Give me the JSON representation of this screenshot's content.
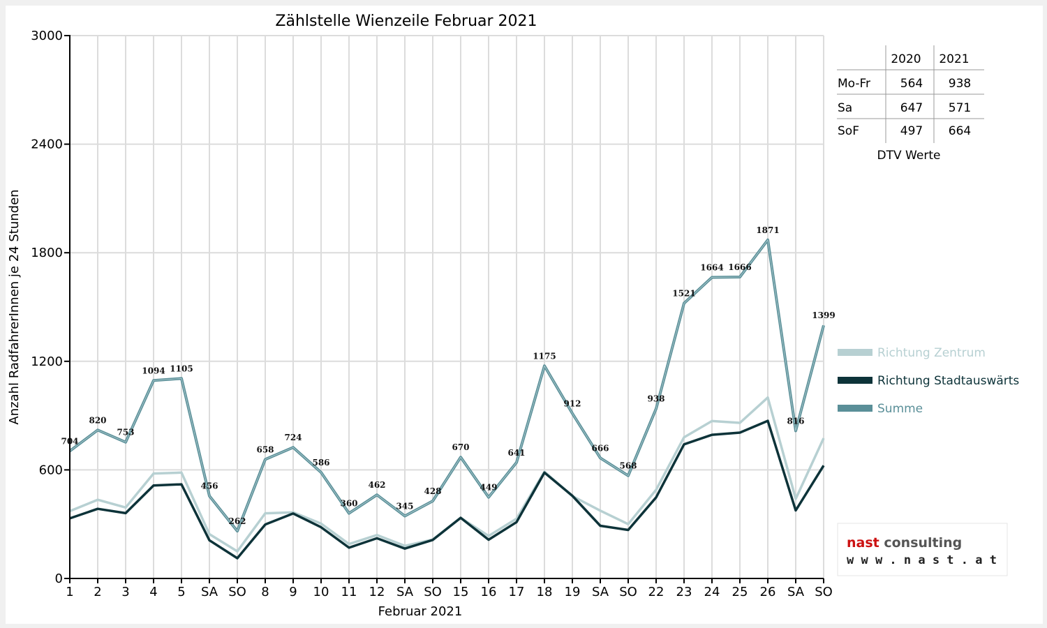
{
  "chart_data": {
    "type": "line",
    "title": "Zählstelle Wienzeile Februar 2021",
    "xlabel": "Februar 2021",
    "ylabel": "Anzahl RadfahrerInnen je 24 Stunden",
    "ylim": [
      0,
      3000
    ],
    "yticks": [
      0,
      600,
      1200,
      1800,
      2400,
      3000
    ],
    "grid": true,
    "legend_position": "right",
    "categories": [
      "1",
      "2",
      "3",
      "4",
      "5",
      "SA",
      "SO",
      "8",
      "9",
      "10",
      "11",
      "12",
      "SA",
      "SO",
      "15",
      "16",
      "17",
      "18",
      "19",
      "SA",
      "SO",
      "22",
      "23",
      "24",
      "25",
      "26",
      "SA",
      "SO"
    ],
    "sunday_color": "#ff0000",
    "series": [
      {
        "name": "Richtung Zentrum",
        "color": "#b7d0d2",
        "values": [
          372,
          435,
          392,
          580,
          585,
          245,
          150,
          360,
          365,
          303,
          190,
          240,
          180,
          215,
          335,
          235,
          330,
          590,
          455,
          375,
          300,
          490,
          780,
          870,
          860,
          1000,
          440,
          775
        ]
      },
      {
        "name": "Richtung Stadtauswärts",
        "color": "#0d3339",
        "values": [
          332,
          385,
          361,
          514,
          520,
          211,
          112,
          298,
          359,
          283,
          170,
          222,
          165,
          213,
          335,
          214,
          311,
          585,
          457,
          291,
          268,
          448,
          741,
          794,
          806,
          871,
          376,
          624
        ]
      },
      {
        "name": "Summe",
        "color": "#5a8f98",
        "values": [
          704,
          820,
          753,
          1094,
          1105,
          456,
          262,
          658,
          724,
          586,
          360,
          462,
          345,
          428,
          670,
          449,
          641,
          1175,
          912,
          666,
          568,
          938,
          1521,
          1664,
          1666,
          1871,
          816,
          1399
        ]
      }
    ],
    "data_labels": [
      "704",
      "820",
      "753",
      "1094",
      "1105",
      "456",
      "262",
      "658",
      "724",
      "586",
      "360",
      "462",
      "345",
      "428",
      "670",
      "449",
      "641",
      "1175",
      "912",
      "666",
      "568",
      "938",
      "1521",
      "1664",
      "1666",
      "1871",
      "816",
      "1399"
    ]
  },
  "dtv_table": {
    "headers": [
      "",
      "2020",
      "2021"
    ],
    "rows": [
      {
        "label": "Mo-Fr",
        "v2020": "564",
        "v2021": "938"
      },
      {
        "label": "Sa",
        "v2020": "647",
        "v2021": "571"
      },
      {
        "label": "SoF",
        "v2020": "497",
        "v2021": "664"
      }
    ],
    "caption": "DTV Werte"
  },
  "logo": {
    "part1": "nast",
    "part2": " consulting",
    "url": "w w w . n a s t . a t",
    "color1": "#cc1111",
    "color2": "#555555"
  }
}
